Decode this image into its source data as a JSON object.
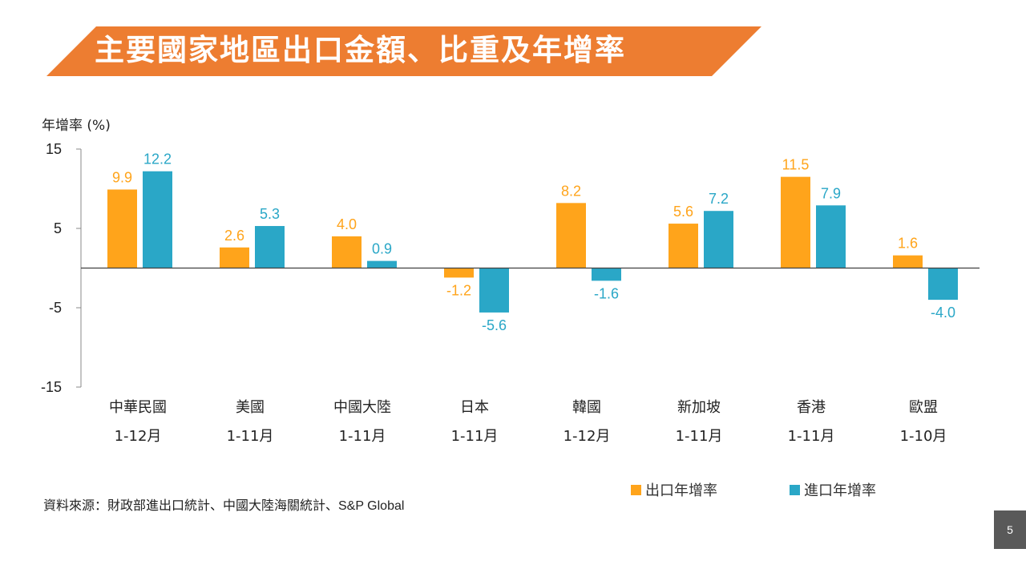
{
  "slide": {
    "title": "主要國家地區出口金額、比重及年增率",
    "source": "資料來源：財政部進出口統計、中國大陸海關統計、S&P Global",
    "page_number": "5"
  },
  "colors": {
    "banner": "#ED7D31",
    "export": "#FFA41B",
    "import": "#2AA7C7"
  },
  "chart_data": {
    "type": "bar",
    "ylabel": "年增率 (%)",
    "ylim": [
      -15,
      15
    ],
    "yticks": [
      "15",
      "5",
      "-5",
      "-15"
    ],
    "categories": [
      "中華民國",
      "美國",
      "中國大陸",
      "日本",
      "韓國",
      "新加坡",
      "香港",
      "歐盟"
    ],
    "periods": [
      "1-12月",
      "1-11月",
      "1-11月",
      "1-11月",
      "1-12月",
      "1-11月",
      "1-11月",
      "1-10月"
    ],
    "legend_position": "bottom-right",
    "grid": false,
    "series": [
      {
        "name": "出口年增率",
        "values": [
          9.9,
          2.6,
          4.0,
          -1.2,
          8.2,
          5.6,
          11.5,
          1.6
        ],
        "labels": [
          "9.9",
          "2.6",
          "4.0",
          "-1.2",
          "8.2",
          "5.6",
          "11.5",
          "1.6"
        ]
      },
      {
        "name": "進口年增率",
        "values": [
          12.2,
          5.3,
          0.9,
          -5.6,
          -1.6,
          7.2,
          7.9,
          -4.0
        ],
        "labels": [
          "12.2",
          "5.3",
          "0.9",
          "-5.6",
          "-1.6",
          "7.2",
          "7.9",
          "-4.0"
        ]
      }
    ]
  }
}
